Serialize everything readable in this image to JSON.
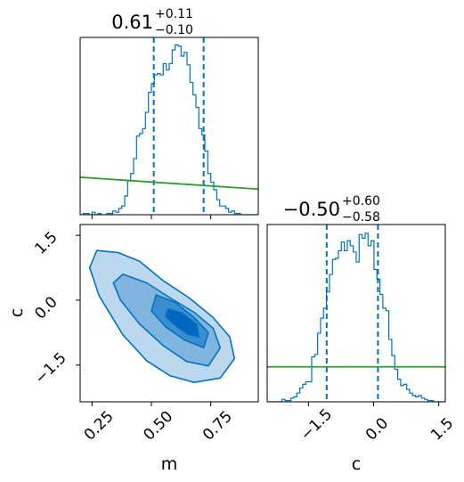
{
  "chart_data": {
    "type": "corner",
    "parameters": [
      "m",
      "c"
    ],
    "colors": {
      "posterior": "#0072c1",
      "prior": "#2ca02c",
      "frame": "#000000"
    },
    "panels": [
      {
        "id": "m-marginal",
        "type": "histogram",
        "parameter": "m",
        "title": {
          "median": "0.61",
          "plus": "+0.11",
          "minus": "−0.10"
        },
        "median": 0.61,
        "quantiles": [
          0.51,
          0.72
        ],
        "xlim": [
          0.2,
          0.95
        ],
        "bin_width": 0.0125,
        "counts": [
          0,
          1,
          1,
          0,
          2,
          0,
          1,
          0,
          0,
          1,
          1,
          3,
          2,
          5,
          7,
          15,
          27,
          33,
          45,
          63,
          65,
          69,
          82,
          98,
          105,
          112,
          113,
          112,
          121,
          116,
          121,
          132,
          136,
          135,
          127,
          130,
          120,
          106,
          96,
          86,
          69,
          64,
          51,
          33,
          26,
          20,
          12,
          7,
          7,
          5,
          2,
          3,
          1,
          1,
          0,
          0,
          0,
          0,
          0,
          0
        ],
        "ylim": [
          0,
          142
        ],
        "prior_line": {
          "x": [
            0.2,
            0.95
          ],
          "y": [
            30.0,
            20.5
          ]
        }
      },
      {
        "id": "c-marginal",
        "type": "histogram",
        "parameter": "c",
        "title": {
          "median": "−0.50",
          "plus": "+0.60",
          "minus": "−0.58"
        },
        "median": -0.5,
        "quantiles": [
          -1.08,
          0.1
        ],
        "xlim": [
          -2.45,
          1.65
        ],
        "bin_width": 0.0683,
        "counts": [
          0,
          0,
          0,
          0,
          0,
          2,
          1,
          1,
          3,
          4,
          7,
          11,
          14,
          16,
          16,
          36,
          38,
          55,
          67,
          75,
          88,
          102,
          114,
          115,
          121,
          128,
          121,
          129,
          125,
          120,
          112,
          134,
          131,
          135,
          125,
          129,
          106,
          98,
          86,
          75,
          73,
          50,
          37,
          26,
          18,
          13,
          14,
          10,
          7,
          5,
          4,
          5,
          3,
          2,
          1,
          1,
          0,
          0,
          0,
          0
        ],
        "ylim": [
          0,
          142
        ],
        "prior_line": {
          "x": [
            -2.45,
            1.65
          ],
          "y": [
            28,
            28
          ]
        }
      },
      {
        "id": "m-c-joint",
        "type": "contour",
        "x_parameter": "m",
        "y_parameter": "c",
        "xlim": [
          0.2,
          0.95
        ],
        "ylim": [
          -2.35,
          1.75
        ],
        "levels": [
          {
            "name": "outer",
            "fill": "#bcd8ee",
            "polygon": [
              [
                0.27,
                1.15
              ],
              [
                0.36,
                1.1
              ],
              [
                0.45,
                0.9
              ],
              [
                0.55,
                0.45
              ],
              [
                0.66,
                0.05
              ],
              [
                0.76,
                -0.4
              ],
              [
                0.83,
                -0.85
              ],
              [
                0.85,
                -1.35
              ],
              [
                0.79,
                -1.8
              ],
              [
                0.68,
                -1.9
              ],
              [
                0.58,
                -1.75
              ],
              [
                0.48,
                -1.4
              ],
              [
                0.38,
                -0.8
              ],
              [
                0.28,
                0.1
              ],
              [
                0.24,
                0.75
              ]
            ]
          },
          {
            "name": "middle",
            "fill": "#80b5df",
            "polygon": [
              [
                0.38,
                0.6
              ],
              [
                0.48,
                0.4
              ],
              [
                0.58,
                0.05
              ],
              [
                0.68,
                -0.28
              ],
              [
                0.76,
                -0.65
              ],
              [
                0.79,
                -1.1
              ],
              [
                0.74,
                -1.52
              ],
              [
                0.65,
                -1.42
              ],
              [
                0.55,
                -1.05
              ],
              [
                0.45,
                -0.55
              ],
              [
                0.37,
                0.0
              ],
              [
                0.34,
                0.4
              ]
            ]
          },
          {
            "name": "inner",
            "fill": "#3a8ed0",
            "polygon": [
              [
                0.52,
                0.12
              ],
              [
                0.6,
                -0.05
              ],
              [
                0.68,
                -0.4
              ],
              [
                0.74,
                -0.75
              ],
              [
                0.72,
                -1.1
              ],
              [
                0.64,
                -0.92
              ],
              [
                0.56,
                -0.62
              ],
              [
                0.5,
                -0.25
              ]
            ]
          },
          {
            "name": "core",
            "fill": "#0066be",
            "polygon": [
              [
                0.57,
                -0.2
              ],
              [
                0.63,
                -0.3
              ],
              [
                0.69,
                -0.56
              ],
              [
                0.7,
                -0.85
              ],
              [
                0.65,
                -0.78
              ],
              [
                0.6,
                -0.58
              ],
              [
                0.56,
                -0.38
              ]
            ]
          }
        ]
      }
    ],
    "axes": {
      "m": {
        "label": "m",
        "ticks": [
          0.25,
          0.5,
          0.75
        ],
        "tick_labels": [
          "0.25",
          "0.50",
          "0.75"
        ]
      },
      "c": {
        "label": "c",
        "ticks": [
          -1.5,
          0.0,
          1.5
        ],
        "tick_labels": [
          "−1.5",
          "0.0",
          "1.5"
        ]
      }
    }
  }
}
